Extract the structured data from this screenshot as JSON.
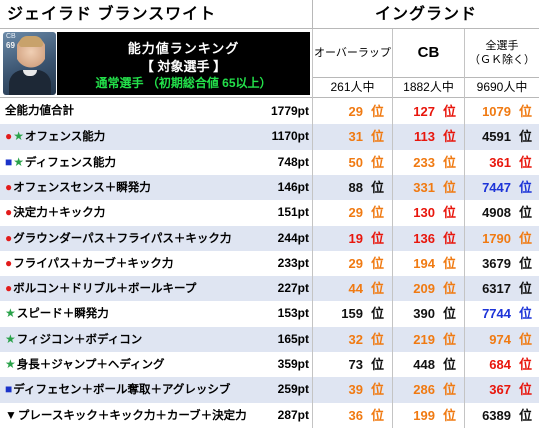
{
  "header": {
    "player_name": "ジェイラド ブランスワイト",
    "nation": "イングランド"
  },
  "card": {
    "position": "CB",
    "rating": "69"
  },
  "ranking_box": {
    "title": "能力値ランキング",
    "subtitle": "【 対象選手 】",
    "condition": "通常選手 （初期総合値 65以上）"
  },
  "columns": [
    {
      "title": "オーバーラップ",
      "count": "261人中"
    },
    {
      "title": "CB",
      "count": "1882人中"
    },
    {
      "title": "全選手\n（ＧＫ除く）",
      "count": "9690人中"
    }
  ],
  "rank_suffix": "位",
  "rows": [
    {
      "marker": "",
      "marker_color": "",
      "label": "全能力値合計",
      "pt": "1779pt",
      "r1": "29",
      "c1": "#f07a12",
      "r2": "127",
      "c2": "#e8160c",
      "r3": "1079",
      "c3": "#f07a12"
    },
    {
      "marker": "●★",
      "marker_color": "red-green",
      "label": "オフェンス能力",
      "pt": "1170pt",
      "r1": "31",
      "c1": "#f07a12",
      "r2": "113",
      "c2": "#e8160c",
      "r3": "4591",
      "c3": "#111111"
    },
    {
      "marker": "■★",
      "marker_color": "blue-green",
      "label": "ディフェンス能力",
      "pt": "748pt",
      "r1": "50",
      "c1": "#f07a12",
      "r2": "233",
      "c2": "#f07a12",
      "r3": "361",
      "c3": "#e8160c"
    },
    {
      "marker": "●",
      "marker_color": "red",
      "label": "オフェンスセンス＋瞬発力",
      "pt": "146pt",
      "r1": "88",
      "c1": "#111111",
      "r2": "331",
      "c2": "#f07a12",
      "r3": "7447",
      "c3": "#1d34d8"
    },
    {
      "marker": "●",
      "marker_color": "red",
      "label": "決定力＋キック力",
      "pt": "151pt",
      "r1": "29",
      "c1": "#f07a12",
      "r2": "130",
      "c2": "#e8160c",
      "r3": "4908",
      "c3": "#111111"
    },
    {
      "marker": "●",
      "marker_color": "red",
      "label": "グラウンダーパス＋フライパス＋キック力",
      "pt": "244pt",
      "r1": "19",
      "c1": "#e8160c",
      "r2": "136",
      "c2": "#e8160c",
      "r3": "1790",
      "c3": "#f07a12"
    },
    {
      "marker": "●",
      "marker_color": "red",
      "label": "フライパス＋カーブ＋キック力",
      "pt": "233pt",
      "r1": "29",
      "c1": "#f07a12",
      "r2": "194",
      "c2": "#f07a12",
      "r3": "3679",
      "c3": "#111111"
    },
    {
      "marker": "●",
      "marker_color": "red",
      "label": "ボルコン＋ドリブル＋ボールキープ",
      "pt": "227pt",
      "r1": "44",
      "c1": "#f07a12",
      "r2": "209",
      "c2": "#f07a12",
      "r3": "6317",
      "c3": "#111111"
    },
    {
      "marker": "★",
      "marker_color": "green",
      "label": "スピード＋瞬発力",
      "pt": "153pt",
      "r1": "159",
      "c1": "#111111",
      "r2": "390",
      "c2": "#111111",
      "r3": "7744",
      "c3": "#1d34d8"
    },
    {
      "marker": "★",
      "marker_color": "green",
      "label": "フィジコン＋ボディコン",
      "pt": "165pt",
      "r1": "32",
      "c1": "#f07a12",
      "r2": "219",
      "c2": "#f07a12",
      "r3": "974",
      "c3": "#f07a12"
    },
    {
      "marker": "★",
      "marker_color": "green",
      "label": "身長＋ジャンプ＋ヘディング",
      "pt": "359pt",
      "r1": "73",
      "c1": "#111111",
      "r2": "448",
      "c2": "#111111",
      "r3": "684",
      "c3": "#e8160c"
    },
    {
      "marker": "■",
      "marker_color": "blue",
      "label": "ディフェセン＋ボール奪取＋アグレッシブ",
      "pt": "259pt",
      "r1": "39",
      "c1": "#f07a12",
      "r2": "286",
      "c2": "#f07a12",
      "r3": "367",
      "c3": "#e8160c"
    },
    {
      "marker": "▼",
      "marker_color": "black",
      "label": "プレースキック＋キック力＋カーブ＋決定力",
      "pt": "287pt",
      "r1": "36",
      "c1": "#f07a12",
      "r2": "199",
      "c2": "#f07a12",
      "r3": "6389",
      "c3": "#111111"
    }
  ]
}
